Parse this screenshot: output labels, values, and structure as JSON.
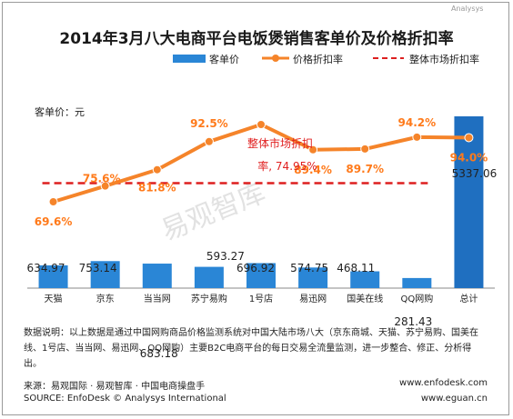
{
  "chart_data": {
    "type": "bar",
    "title": "2014年3月八大电商平台电饭煲销售客单价及价格折扣率",
    "ylabel": "客单价：元",
    "categories": [
      "天猫",
      "京东",
      "当当网",
      "苏宁易购",
      "1号店",
      "易迅网",
      "国美在线",
      "QQ网购",
      "总计"
    ],
    "series": [
      {
        "name": "客单价",
        "type": "bar",
        "color": "#2a86d6",
        "values": [
          634.97,
          753.14,
          683.18,
          593.27,
          696.92,
          574.75,
          468.11,
          281.43,
          5337.06
        ],
        "labels": [
          "634.97",
          "753.14",
          "683.18",
          "593.27",
          "696.92",
          "574.75",
          "468.11",
          "281.43",
          "5337.06"
        ],
        "highlight_index": 8
      },
      {
        "name": "价格折扣率",
        "type": "line",
        "color": "#f5842a",
        "values": [
          69.6,
          75.6,
          81.8,
          92.5,
          99.0,
          89.4,
          89.7,
          94.2,
          94.0
        ],
        "labels": [
          "69.6%",
          "75.6%",
          "81.8%",
          "92.5%",
          "",
          "89.4%",
          "89.7%",
          "94.2%",
          "94.0%"
        ]
      },
      {
        "name": "整体市场折扣率",
        "type": "line",
        "style": "dashed",
        "color": "#dd1f1f",
        "value": 74.95
      }
    ],
    "annotation": {
      "line1": "整体市场折扣",
      "line2": "率, 74.95%"
    },
    "legend_position": "top",
    "grid": false
  },
  "watermark": "易观智库",
  "corner_mark": "Analysys",
  "note": "数据说明：以上数据是通过中国网购商品价格监测系统对中国大陆市场八大（京东商城、天猫、苏宁易购、国美在线、1号店、当当网、易迅网、QQ网购）主要B2C电商平台的每日交易全流量监测，进一步整合、修正、分析得出。",
  "footer": {
    "source_cn": "来源：易观国际 · 易观智库 · 中国电商操盘手",
    "source_en": "SOURCE: EnfoDesk © Analysys International",
    "url1": "www.enfodesk.com",
    "url2": "www.eguan.cn"
  },
  "colors": {
    "bar": "#2a86d6",
    "line": "#f5842a",
    "market": "#dd1f1f",
    "total_bar": "#1f6fc0"
  }
}
